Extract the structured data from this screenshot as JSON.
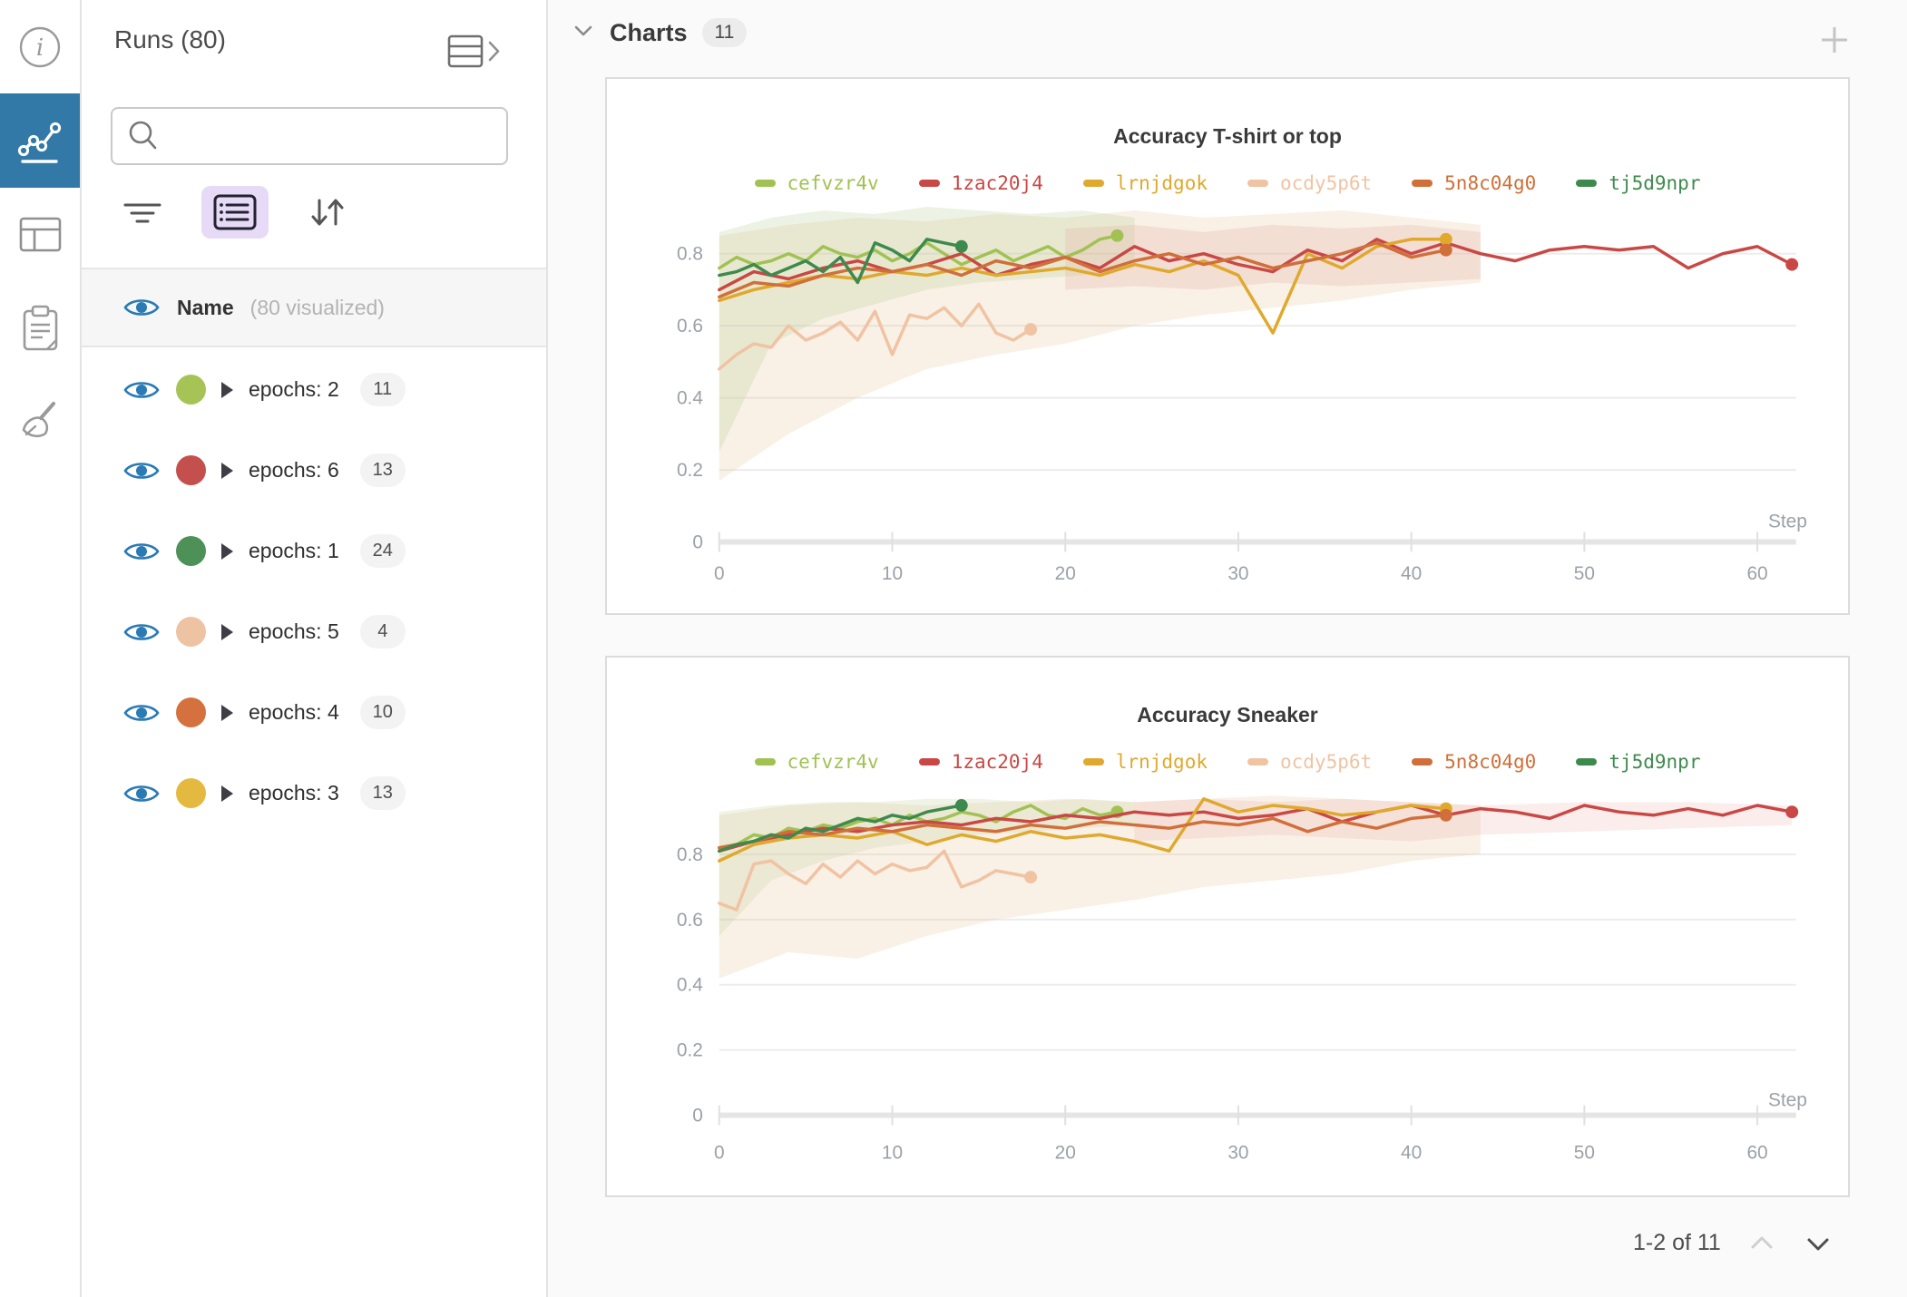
{
  "icon_rail": {
    "active_color": "#3379a8",
    "items": [
      {
        "name": "info"
      },
      {
        "name": "charts",
        "active": true
      },
      {
        "name": "table"
      },
      {
        "name": "notes"
      },
      {
        "name": "sweep"
      }
    ]
  },
  "sidebar": {
    "title": "Runs (80)",
    "search": {
      "placeholder": ""
    },
    "visibility_header": {
      "label": "Name",
      "sublabel": "(80 visualized)"
    },
    "runs": [
      {
        "label": "epochs: 2",
        "count": "11",
        "color": "#a6c455"
      },
      {
        "label": "epochs: 6",
        "count": "13",
        "color": "#c4504d"
      },
      {
        "label": "epochs: 1",
        "count": "24",
        "color": "#4e9158"
      },
      {
        "label": "epochs: 5",
        "count": "4",
        "color": "#edc3a3"
      },
      {
        "label": "epochs: 4",
        "count": "10",
        "color": "#d4713e"
      },
      {
        "label": "epochs: 3",
        "count": "13",
        "color": "#e4b93f"
      }
    ]
  },
  "main": {
    "section_title": "Charts",
    "section_badge": "11",
    "pagination": "1-2 of 11"
  },
  "chart_data": [
    {
      "type": "line",
      "title": "Accuracy T-shirt or top",
      "xlabel": "Step",
      "ylabel": "",
      "xlim": [
        0,
        62
      ],
      "ylim": [
        0,
        0.95
      ],
      "xticks": [
        0,
        10,
        20,
        30,
        40,
        50,
        60
      ],
      "yticks": [
        0,
        0.2,
        0.4,
        0.6,
        0.8
      ],
      "grid": true,
      "legend_position": "top",
      "series": [
        {
          "name": "cefvzr4v",
          "color": "#a1c253",
          "end_dot": true,
          "x": [
            0,
            1,
            2,
            3,
            4,
            5,
            6,
            7,
            8,
            9,
            10,
            11,
            12,
            13,
            14,
            15,
            16,
            17,
            18,
            19,
            20,
            21,
            22,
            23
          ],
          "values": [
            0.76,
            0.79,
            0.77,
            0.78,
            0.8,
            0.78,
            0.82,
            0.8,
            0.79,
            0.81,
            0.78,
            0.8,
            0.83,
            0.8,
            0.77,
            0.79,
            0.81,
            0.78,
            0.8,
            0.82,
            0.79,
            0.81,
            0.84,
            0.85
          ]
        },
        {
          "name": "1zac20j4",
          "color": "#c94845",
          "end_dot": true,
          "x": [
            0,
            2,
            4,
            6,
            8,
            10,
            12,
            14,
            16,
            18,
            20,
            22,
            24,
            26,
            28,
            30,
            32,
            34,
            36,
            38,
            40,
            42,
            44,
            46,
            48,
            50,
            52,
            54,
            56,
            58,
            60,
            62
          ],
          "values": [
            0.7,
            0.75,
            0.73,
            0.76,
            0.78,
            0.75,
            0.77,
            0.8,
            0.74,
            0.77,
            0.79,
            0.76,
            0.82,
            0.78,
            0.8,
            0.77,
            0.75,
            0.81,
            0.78,
            0.84,
            0.8,
            0.83,
            0.8,
            0.78,
            0.81,
            0.82,
            0.81,
            0.82,
            0.76,
            0.8,
            0.82,
            0.77
          ]
        },
        {
          "name": "lrnjdgok",
          "color": "#dfa92d",
          "end_dot": true,
          "x": [
            0,
            2,
            4,
            6,
            8,
            10,
            12,
            14,
            16,
            18,
            20,
            22,
            24,
            26,
            28,
            30,
            32,
            34,
            36,
            38,
            40,
            42
          ],
          "values": [
            0.67,
            0.7,
            0.72,
            0.74,
            0.73,
            0.75,
            0.74,
            0.76,
            0.74,
            0.75,
            0.76,
            0.74,
            0.77,
            0.75,
            0.78,
            0.74,
            0.58,
            0.8,
            0.76,
            0.82,
            0.84,
            0.84
          ]
        },
        {
          "name": "ocdy5p6t",
          "color": "#f0c3a3",
          "end_dot": true,
          "x": [
            0,
            1,
            2,
            3,
            4,
            5,
            6,
            7,
            8,
            9,
            10,
            11,
            12,
            13,
            14,
            15,
            16,
            17,
            18
          ],
          "values": [
            0.48,
            0.52,
            0.55,
            0.54,
            0.6,
            0.56,
            0.58,
            0.61,
            0.56,
            0.64,
            0.52,
            0.63,
            0.62,
            0.65,
            0.6,
            0.66,
            0.58,
            0.56,
            0.59
          ]
        },
        {
          "name": "5n8c04g0",
          "color": "#d06f39",
          "end_dot": true,
          "x": [
            0,
            2,
            4,
            6,
            8,
            10,
            12,
            14,
            16,
            18,
            20,
            22,
            24,
            26,
            28,
            30,
            32,
            34,
            36,
            38,
            40,
            42
          ],
          "values": [
            0.68,
            0.72,
            0.71,
            0.74,
            0.76,
            0.75,
            0.77,
            0.74,
            0.78,
            0.76,
            0.79,
            0.75,
            0.78,
            0.8,
            0.77,
            0.79,
            0.76,
            0.78,
            0.8,
            0.83,
            0.79,
            0.81
          ]
        },
        {
          "name": "tj5d9npr",
          "color": "#3e8a4d",
          "end_dot": true,
          "x": [
            0,
            1,
            2,
            3,
            4,
            5,
            6,
            7,
            8,
            9,
            10,
            11,
            12,
            13,
            14
          ],
          "values": [
            0.74,
            0.75,
            0.77,
            0.74,
            0.76,
            0.78,
            0.75,
            0.79,
            0.72,
            0.83,
            0.81,
            0.78,
            0.84,
            0.83,
            0.82
          ]
        }
      ],
      "bands": [
        {
          "color": "#e3b98e",
          "opacity": 0.22,
          "x": [
            0,
            4,
            8,
            12,
            16,
            20,
            24,
            28,
            32,
            36,
            40,
            44
          ],
          "lo": [
            0.17,
            0.3,
            0.4,
            0.48,
            0.52,
            0.55,
            0.6,
            0.63,
            0.65,
            0.67,
            0.7,
            0.72
          ],
          "hi": [
            0.85,
            0.88,
            0.9,
            0.89,
            0.91,
            0.9,
            0.92,
            0.9,
            0.91,
            0.92,
            0.9,
            0.88
          ]
        },
        {
          "color": "#b9cf92",
          "opacity": 0.25,
          "x": [
            0,
            3,
            6,
            9,
            12,
            15,
            18,
            21,
            24
          ],
          "lo": [
            0.25,
            0.55,
            0.62,
            0.66,
            0.7,
            0.72,
            0.73,
            0.74,
            0.76
          ],
          "hi": [
            0.86,
            0.9,
            0.92,
            0.91,
            0.93,
            0.92,
            0.91,
            0.92,
            0.9
          ]
        },
        {
          "color": "#e4a79e",
          "opacity": 0.25,
          "x": [
            20,
            24,
            28,
            32,
            36,
            40,
            44
          ],
          "lo": [
            0.7,
            0.71,
            0.7,
            0.72,
            0.71,
            0.72,
            0.73
          ],
          "hi": [
            0.87,
            0.88,
            0.86,
            0.88,
            0.87,
            0.88,
            0.86
          ]
        }
      ]
    },
    {
      "type": "line",
      "title": "Accuracy Sneaker",
      "xlabel": "Step",
      "ylabel": "",
      "xlim": [
        0,
        62
      ],
      "ylim": [
        0,
        1.0
      ],
      "xticks": [
        0,
        10,
        20,
        30,
        40,
        50,
        60
      ],
      "yticks": [
        0,
        0.2,
        0.4,
        0.6,
        0.8
      ],
      "grid": true,
      "legend_position": "top",
      "series": [
        {
          "name": "cefvzr4v",
          "color": "#a1c253",
          "end_dot": true,
          "x": [
            0,
            1,
            2,
            3,
            4,
            5,
            6,
            7,
            8,
            9,
            10,
            11,
            12,
            13,
            14,
            15,
            16,
            17,
            18,
            19,
            20,
            21,
            22,
            23
          ],
          "values": [
            0.82,
            0.83,
            0.86,
            0.85,
            0.88,
            0.87,
            0.89,
            0.88,
            0.9,
            0.91,
            0.89,
            0.92,
            0.9,
            0.91,
            0.93,
            0.92,
            0.9,
            0.93,
            0.95,
            0.92,
            0.91,
            0.94,
            0.92,
            0.93
          ]
        },
        {
          "name": "1zac20j4",
          "color": "#c94845",
          "end_dot": true,
          "x": [
            0,
            2,
            4,
            6,
            8,
            10,
            12,
            14,
            16,
            18,
            20,
            22,
            24,
            26,
            28,
            30,
            32,
            34,
            36,
            38,
            40,
            42,
            44,
            46,
            48,
            50,
            52,
            54,
            56,
            58,
            60,
            62
          ],
          "values": [
            0.81,
            0.84,
            0.86,
            0.88,
            0.87,
            0.89,
            0.9,
            0.89,
            0.91,
            0.9,
            0.92,
            0.91,
            0.93,
            0.92,
            0.93,
            0.91,
            0.92,
            0.94,
            0.9,
            0.93,
            0.95,
            0.92,
            0.94,
            0.93,
            0.91,
            0.95,
            0.93,
            0.92,
            0.94,
            0.92,
            0.95,
            0.93
          ]
        },
        {
          "name": "lrnjdgok",
          "color": "#dfa92d",
          "end_dot": true,
          "x": [
            0,
            2,
            4,
            6,
            8,
            10,
            12,
            14,
            16,
            18,
            20,
            22,
            24,
            26,
            28,
            30,
            32,
            34,
            36,
            38,
            40,
            42
          ],
          "values": [
            0.78,
            0.83,
            0.85,
            0.86,
            0.85,
            0.87,
            0.83,
            0.86,
            0.84,
            0.87,
            0.85,
            0.86,
            0.84,
            0.81,
            0.97,
            0.93,
            0.95,
            0.94,
            0.92,
            0.93,
            0.95,
            0.94
          ]
        },
        {
          "name": "ocdy5p6t",
          "color": "#f0c3a3",
          "end_dot": true,
          "x": [
            0,
            1,
            2,
            3,
            4,
            5,
            6,
            7,
            8,
            9,
            10,
            11,
            12,
            13,
            14,
            15,
            16,
            17,
            18
          ],
          "values": [
            0.65,
            0.63,
            0.77,
            0.78,
            0.74,
            0.71,
            0.77,
            0.73,
            0.78,
            0.74,
            0.77,
            0.75,
            0.76,
            0.81,
            0.7,
            0.72,
            0.75,
            0.74,
            0.73
          ]
        },
        {
          "name": "5n8c04g0",
          "color": "#d06f39",
          "end_dot": true,
          "x": [
            0,
            2,
            4,
            6,
            8,
            10,
            12,
            14,
            16,
            18,
            20,
            22,
            24,
            26,
            28,
            30,
            32,
            34,
            36,
            38,
            40,
            42
          ],
          "values": [
            0.82,
            0.84,
            0.87,
            0.86,
            0.88,
            0.87,
            0.89,
            0.88,
            0.87,
            0.89,
            0.88,
            0.9,
            0.89,
            0.88,
            0.9,
            0.89,
            0.91,
            0.87,
            0.9,
            0.88,
            0.91,
            0.92
          ]
        },
        {
          "name": "tj5d9npr",
          "color": "#3e8a4d",
          "end_dot": true,
          "x": [
            0,
            1,
            2,
            3,
            4,
            5,
            6,
            7,
            8,
            9,
            10,
            11,
            12,
            13,
            14
          ],
          "values": [
            0.81,
            0.83,
            0.84,
            0.86,
            0.85,
            0.88,
            0.87,
            0.89,
            0.91,
            0.9,
            0.92,
            0.91,
            0.93,
            0.94,
            0.95
          ]
        }
      ],
      "bands": [
        {
          "color": "#e3b98e",
          "opacity": 0.22,
          "x": [
            0,
            4,
            8,
            12,
            16,
            20,
            24,
            28,
            32,
            36,
            40,
            44
          ],
          "lo": [
            0.42,
            0.5,
            0.48,
            0.55,
            0.6,
            0.63,
            0.66,
            0.7,
            0.72,
            0.74,
            0.78,
            0.8
          ],
          "hi": [
            0.92,
            0.95,
            0.96,
            0.95,
            0.96,
            0.97,
            0.96,
            0.97,
            0.98,
            0.97,
            0.96,
            0.95
          ]
        },
        {
          "color": "#b9cf92",
          "opacity": 0.22,
          "x": [
            0,
            3,
            6,
            9,
            12,
            15,
            18,
            21,
            24
          ],
          "lo": [
            0.55,
            0.72,
            0.78,
            0.82,
            0.84,
            0.86,
            0.87,
            0.88,
            0.89
          ],
          "hi": [
            0.93,
            0.95,
            0.96,
            0.96,
            0.97,
            0.97,
            0.96,
            0.97,
            0.96
          ]
        },
        {
          "color": "#e4a79e",
          "opacity": 0.2,
          "x": [
            24,
            28,
            32,
            36,
            40,
            44,
            50,
            56,
            62
          ],
          "lo": [
            0.84,
            0.85,
            0.86,
            0.85,
            0.84,
            0.86,
            0.87,
            0.88,
            0.89
          ],
          "hi": [
            0.96,
            0.97,
            0.96,
            0.97,
            0.96,
            0.95,
            0.96,
            0.96,
            0.95
          ]
        }
      ]
    }
  ]
}
